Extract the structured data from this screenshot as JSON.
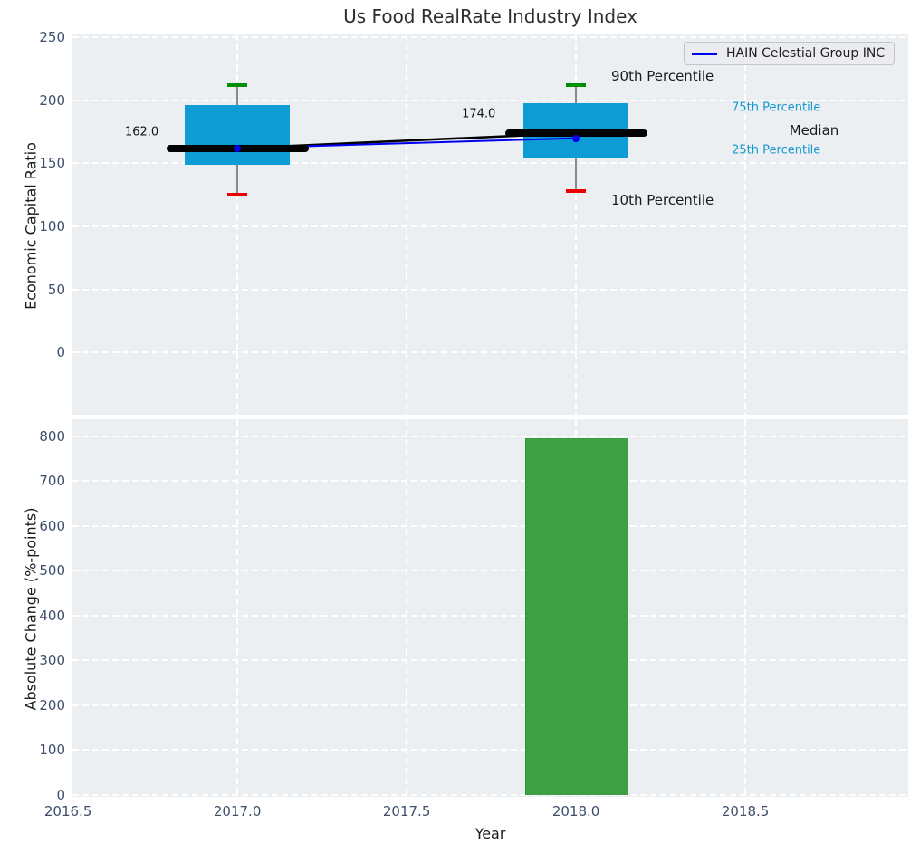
{
  "title": "Us Food RealRate Industry Index",
  "legend": {
    "label": "HAIN Celestial Group INC"
  },
  "colors": {
    "axes_background": "#eceff1",
    "grid": "#ffffff",
    "tick_label": "#3d4d6a",
    "box_fill": "#0d9dd4",
    "bar_fill": "#3da044",
    "whisker": "#8a8a8a",
    "cap_high": "#008f00",
    "cap_low": "#e80000",
    "median": "#000000",
    "company_line": "#0000f0",
    "cyan_label": "#1599cf"
  },
  "chart_data": [
    {
      "type": "boxplot+line",
      "title": "Us Food RealRate Industry Index",
      "ylabel": "Economic Capital Ratio",
      "ylim": [
        -49.4,
        252.3
      ],
      "xlim": [
        2016.513,
        2018.981
      ],
      "yticks": [
        0,
        50,
        100,
        150,
        200,
        250
      ],
      "xticks": [
        2016.5,
        2017.0,
        2017.5,
        2018.0,
        2018.5
      ],
      "grid": "white-dashed",
      "boxes": [
        {
          "year": 2017,
          "p10": 125,
          "p25": 149,
          "median": 162,
          "p75": 196,
          "p90": 212,
          "company": 162,
          "median_label": "162.0"
        },
        {
          "year": 2018,
          "p10": 128,
          "p25": 154,
          "median": 174,
          "p75": 198,
          "p90": 212,
          "company": 170,
          "median_label": "174.0"
        }
      ],
      "series": [
        {
          "name": "Median trend",
          "x": [
            2017,
            2018
          ],
          "values": [
            162,
            174
          ],
          "color": "#000000",
          "width": 2.5
        },
        {
          "name": "HAIN Celestial Group INC",
          "x": [
            2017,
            2018
          ],
          "values": [
            162,
            170
          ],
          "color": "#0000f0",
          "width": 2
        }
      ],
      "legend_position": "upper-right",
      "annotations": [
        {
          "text": "162.0",
          "x": 2016.668,
          "y": 175,
          "class": "annot-num"
        },
        {
          "text": "174.0",
          "x": 2017.663,
          "y": 189,
          "class": "annot-num"
        },
        {
          "text": "90th Percentile",
          "x": 2018.104,
          "y": 219,
          "class": "annot-big"
        },
        {
          "text": "75th Percentile",
          "x": 2018.46,
          "y": 194,
          "class": "annot-cyan"
        },
        {
          "text": "Median",
          "x": 2018.63,
          "y": 176,
          "class": "annot-big"
        },
        {
          "text": "25th Percentile",
          "x": 2018.46,
          "y": 160,
          "class": "annot-cyan"
        },
        {
          "text": "10th Percentile",
          "x": 2018.104,
          "y": 121,
          "class": "annot-big"
        }
      ]
    },
    {
      "type": "bar",
      "ylabel": "Absolute Change (%-points)",
      "xlabel": "Year",
      "ylim": [
        -4.1,
        838.3
      ],
      "xlim": [
        2016.513,
        2018.981
      ],
      "yticks": [
        0,
        100,
        200,
        300,
        400,
        500,
        600,
        700,
        800
      ],
      "xticks": [
        2016.5,
        2017.0,
        2017.5,
        2018.0,
        2018.5
      ],
      "grid": "white-dashed",
      "bars": [
        {
          "x": 2018,
          "value": 796,
          "width": 0.3
        }
      ]
    }
  ]
}
